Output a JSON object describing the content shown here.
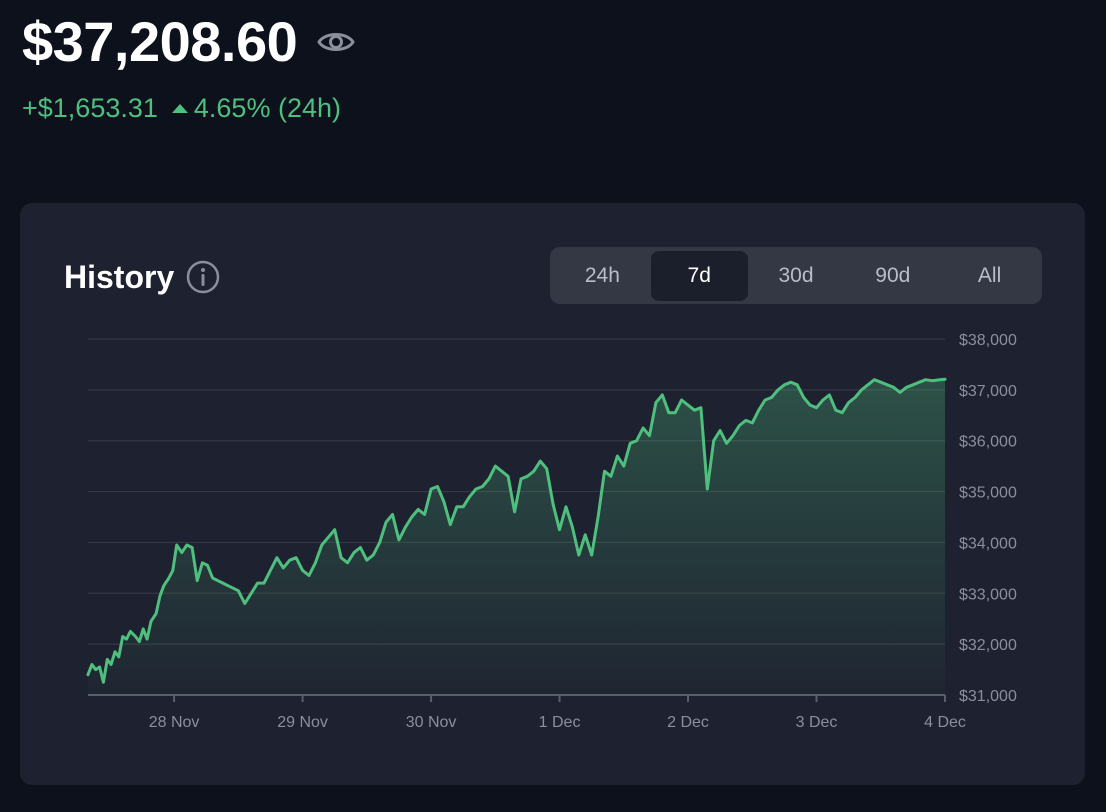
{
  "header": {
    "balance": "$37,208.60",
    "change_abs": "+$1,653.31",
    "change_pct": "4.65% (24h)",
    "positive_color": "#4fbf7e"
  },
  "card": {
    "title": "History",
    "ranges": [
      "24h",
      "7d",
      "30d",
      "90d",
      "All"
    ],
    "active_range": "7d"
  },
  "chart_data": {
    "type": "area",
    "title": "",
    "xlabel": "",
    "ylabel": "",
    "ylim": [
      31000,
      38000
    ],
    "y_ticks": [
      "$31,000",
      "$32,000",
      "$33,000",
      "$34,000",
      "$35,000",
      "$36,000",
      "$37,000",
      "$38,000"
    ],
    "x_ticks": [
      "28 Nov",
      "29 Nov",
      "30 Nov",
      "1 Dec",
      "2 Dec",
      "3 Dec",
      "4 Dec"
    ],
    "x_tick_values": [
      1,
      2,
      3,
      4,
      5,
      6,
      7
    ],
    "xlim": [
      0.33,
      7.0
    ],
    "grid": true,
    "line_color": "#4fbf7e",
    "series": [
      {
        "x": [
          0.33,
          0.36,
          0.39,
          0.42,
          0.45,
          0.48,
          0.51,
          0.54,
          0.57,
          0.6,
          0.63,
          0.66,
          0.7,
          0.73,
          0.76,
          0.79,
          0.82,
          0.86,
          0.89,
          0.92,
          0.96,
          0.99,
          1.02,
          1.06,
          1.1,
          1.14,
          1.18,
          1.22,
          1.26,
          1.3,
          1.34,
          1.38,
          1.42,
          1.46,
          1.5,
          1.55,
          1.6,
          1.65,
          1.7,
          1.75,
          1.8,
          1.85,
          1.9,
          1.95,
          2.0,
          2.05,
          2.1,
          2.15,
          2.2,
          2.25,
          2.3,
          2.35,
          2.4,
          2.45,
          2.5,
          2.55,
          2.6,
          2.65,
          2.7,
          2.75,
          2.8,
          2.85,
          2.9,
          2.95,
          3.0,
          3.05,
          3.1,
          3.15,
          3.2,
          3.25,
          3.3,
          3.35,
          3.4,
          3.45,
          3.5,
          3.55,
          3.6,
          3.65,
          3.7,
          3.75,
          3.8,
          3.85,
          3.9,
          3.95,
          4.0,
          4.05,
          4.1,
          4.15,
          4.2,
          4.25,
          4.3,
          4.35,
          4.4,
          4.45,
          4.5,
          4.55,
          4.6,
          4.65,
          4.7,
          4.75,
          4.8,
          4.85,
          4.9,
          4.95,
          5.0,
          5.05,
          5.1,
          5.15,
          5.2,
          5.25,
          5.3,
          5.35,
          5.4,
          5.45,
          5.5,
          5.55,
          5.6,
          5.65,
          5.7,
          5.75,
          5.8,
          5.85,
          5.9,
          5.95,
          6.0,
          6.05,
          6.1,
          6.15,
          6.2,
          6.25,
          6.3,
          6.35,
          6.4,
          6.45,
          6.5,
          6.55,
          6.6,
          6.65,
          6.7,
          6.75,
          6.8,
          6.85,
          6.9,
          6.95,
          7.0
        ],
        "y": [
          31400,
          31600,
          31500,
          31550,
          31250,
          31700,
          31600,
          31850,
          31750,
          32150,
          32100,
          32250,
          32150,
          32050,
          32300,
          32100,
          32450,
          32600,
          32950,
          33150,
          33300,
          33450,
          33950,
          33800,
          33950,
          33900,
          33250,
          33600,
          33550,
          33300,
          33250,
          33200,
          33150,
          33100,
          33050,
          32800,
          33000,
          33200,
          33200,
          33450,
          33700,
          33500,
          33650,
          33700,
          33450,
          33350,
          33600,
          33950,
          34100,
          34250,
          33700,
          33600,
          33800,
          33900,
          33650,
          33750,
          34000,
          34400,
          34550,
          34050,
          34300,
          34500,
          34650,
          34550,
          35050,
          35100,
          34800,
          34350,
          34700,
          34700,
          34900,
          35050,
          35100,
          35250,
          35500,
          35400,
          35300,
          34600,
          35250,
          35300,
          35400,
          35600,
          35450,
          34750,
          34250,
          34700,
          34300,
          33750,
          34150,
          33750,
          34500,
          35400,
          35300,
          35700,
          35500,
          35950,
          36000,
          36250,
          36100,
          36750,
          36900,
          36550,
          36550,
          36800,
          36700,
          36600,
          36650,
          35050,
          36000,
          36200,
          35950,
          36100,
          36300,
          36400,
          36350,
          36600,
          36800,
          36850,
          37000,
          37100,
          37150,
          37100,
          36850,
          36700,
          36650,
          36800,
          36900,
          36600,
          36550,
          36750,
          36850,
          37000,
          37100,
          37200,
          37150,
          37100,
          37050,
          36950,
          37050,
          37100,
          37150,
          37200,
          37180,
          37195,
          37208
        ]
      }
    ]
  }
}
